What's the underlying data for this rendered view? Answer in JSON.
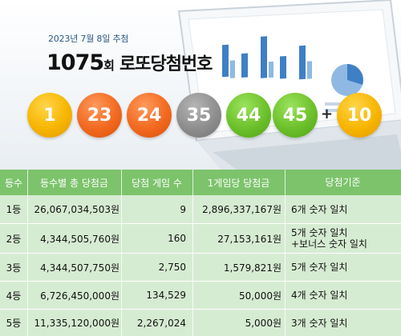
{
  "header": {
    "date": "2023년 7월 8일 추첨",
    "round_number": "1075",
    "round_suffix": "회",
    "title": "로또당첨번호"
  },
  "winning_numbers": [
    {
      "value": "1",
      "color": "#f7b500"
    },
    {
      "value": "23",
      "color": "#f2691f"
    },
    {
      "value": "24",
      "color": "#f2691f"
    },
    {
      "value": "35",
      "color": "#8e8e8e"
    },
    {
      "value": "44",
      "color": "#6cc02a"
    },
    {
      "value": "45",
      "color": "#6cc02a"
    }
  ],
  "plus_sign": "+",
  "bonus_number": {
    "value": "10",
    "color": "#f7b500"
  },
  "table": {
    "header_color": "#7cc36b",
    "body_color": "#d6ecd2",
    "columns": [
      "등수",
      "등수별 총 당첨금",
      "당첨 게임 수",
      "1게임당 당첨금",
      "당첨기준"
    ],
    "rows": [
      {
        "rank": "1등",
        "total": "26,067,034,503원",
        "games": "9",
        "per_game": "2,896,337,167원",
        "criteria": [
          "6개 숫자 일치"
        ]
      },
      {
        "rank": "2등",
        "total": "4,344,505,760원",
        "games": "160",
        "per_game": "27,153,161원",
        "criteria": [
          "5개 숫자 일치",
          "+보너스 숫자 일치"
        ]
      },
      {
        "rank": "3등",
        "total": "4,344,507,750원",
        "games": "2,750",
        "per_game": "1,579,821원",
        "criteria": [
          "5개 숫자 일치"
        ]
      },
      {
        "rank": "4등",
        "total": "6,726,450,000원",
        "games": "134,529",
        "per_game": "50,000원",
        "criteria": [
          "4개 숫자 일치"
        ]
      },
      {
        "rank": "5등",
        "total": "11,335,120,000원",
        "games": "2,267,024",
        "per_game": "5,000원",
        "criteria": [
          "3개 숫자 일치"
        ]
      }
    ]
  }
}
